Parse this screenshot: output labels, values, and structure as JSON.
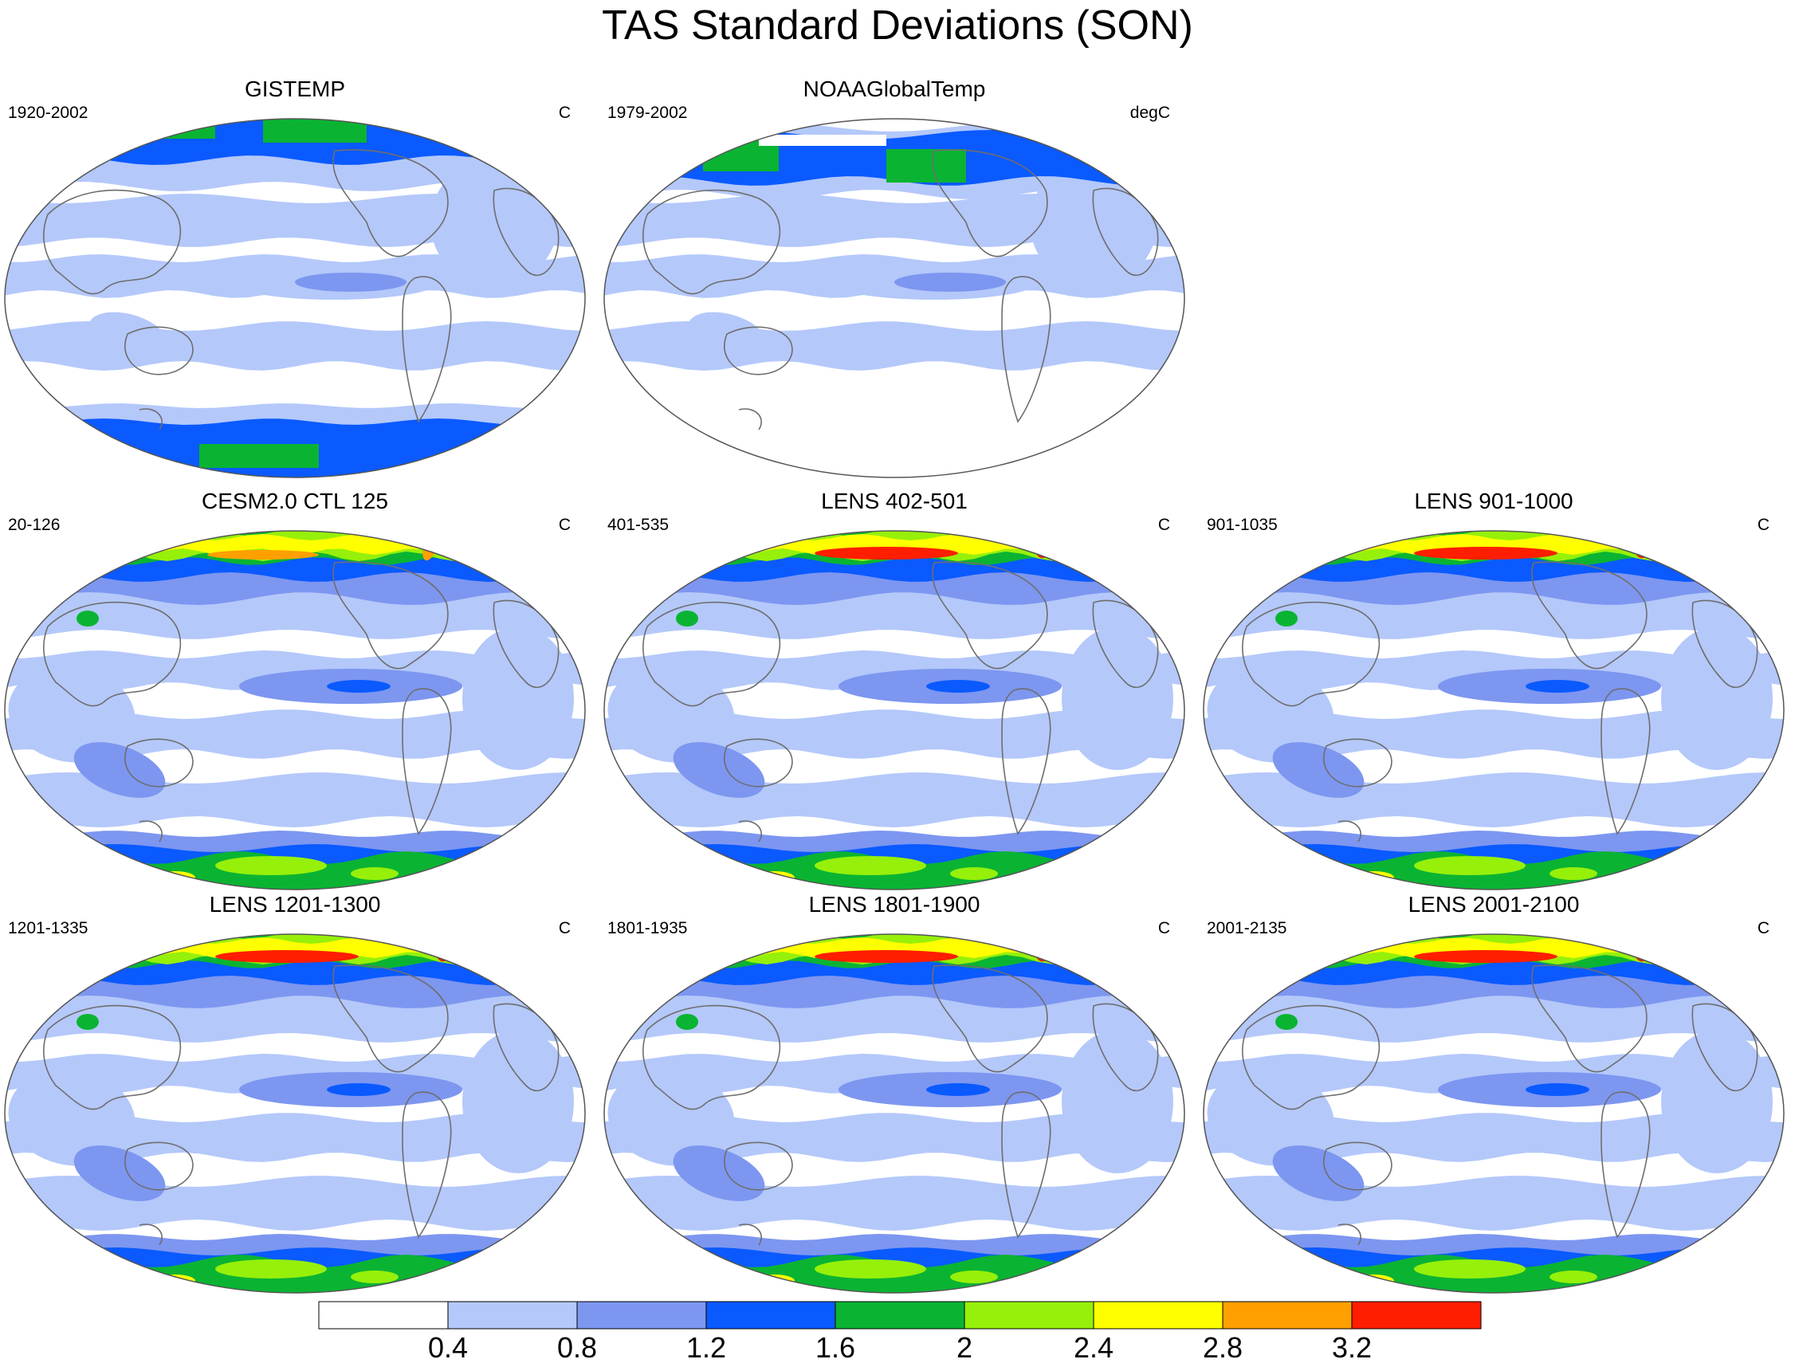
{
  "title": "TAS Standard Deviations (SON)",
  "colors": {
    "levels": [
      "#ffffff",
      "#b4c8fa",
      "#7d96f0",
      "#0a5aff",
      "#0ab432",
      "#96f00a",
      "#ffff00",
      "#ffa000",
      "#ff1e00"
    ],
    "coast": "#6e6e6e",
    "frame": "#555555"
  },
  "panels": [
    {
      "id": "gistemp",
      "title": "GISTEMP",
      "left": "1920-2002",
      "right": "C",
      "type": "obs1",
      "col": 0,
      "row": 0
    },
    {
      "id": "noaa",
      "title": "NOAAGlobalTemp",
      "left": "1979-2002",
      "right": "degC",
      "type": "obs2",
      "col": 1,
      "row": 0
    },
    {
      "id": "cesm-ctl",
      "title": "CESM2.0 CTL 125",
      "left": "20-126",
      "right": "C",
      "type": "model",
      "intensity": 0,
      "col": 0,
      "row": 1
    },
    {
      "id": "lens-402",
      "title": "LENS 402-501",
      "left": "401-535",
      "right": "C",
      "type": "model",
      "intensity": 1,
      "col": 1,
      "row": 1
    },
    {
      "id": "lens-901",
      "title": "LENS 901-1000",
      "left": "901-1035",
      "right": "C",
      "type": "model",
      "intensity": 1,
      "col": 2,
      "row": 1
    },
    {
      "id": "lens-1201",
      "title": "LENS 1201-1300",
      "left": "1201-1335",
      "right": "C",
      "type": "model",
      "intensity": 1,
      "col": 0,
      "row": 2
    },
    {
      "id": "lens-1801",
      "title": "LENS 1801-1900",
      "left": "1801-1935",
      "right": "C",
      "type": "model",
      "intensity": 1,
      "col": 1,
      "row": 2
    },
    {
      "id": "lens-2001",
      "title": "LENS 2001-2100",
      "left": "2001-2135",
      "right": "C",
      "type": "model",
      "intensity": 1,
      "col": 2,
      "row": 2
    }
  ],
  "colorbar": {
    "labels": [
      "0.4",
      "0.8",
      "1.2",
      "1.6",
      "2",
      "2.4",
      "2.8",
      "3.2"
    ]
  }
}
